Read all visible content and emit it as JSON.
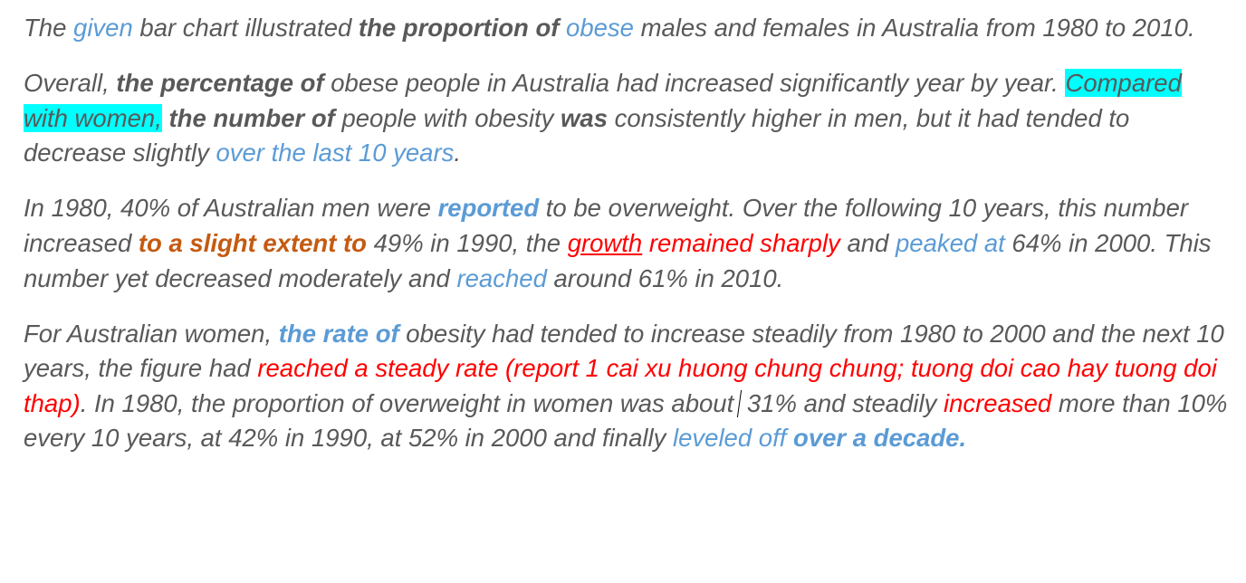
{
  "paragraphs": [
    {
      "segments": [
        {
          "text": "The ",
          "style": []
        },
        {
          "text": "given",
          "style": [
            "blue"
          ]
        },
        {
          "text": " bar chart illustrated ",
          "style": []
        },
        {
          "text": "the proportion of",
          "style": [
            "bold"
          ]
        },
        {
          "text": " ",
          "style": []
        },
        {
          "text": "obese",
          "style": [
            "blue"
          ]
        },
        {
          "text": " males and females in Australia from 1980 to 2010.",
          "style": []
        }
      ]
    },
    {
      "segments": [
        {
          "text": "Overall, ",
          "style": []
        },
        {
          "text": "the percentage of",
          "style": [
            "bold"
          ]
        },
        {
          "text": " obese people in Australia had increased significantly year by year. ",
          "style": []
        },
        {
          "text": "Compared with women,",
          "style": [
            "hl"
          ]
        },
        {
          "text": " ",
          "style": []
        },
        {
          "text": "the number of",
          "style": [
            "bold"
          ]
        },
        {
          "text": " people with obesity ",
          "style": []
        },
        {
          "text": "was",
          "style": [
            "bold"
          ]
        },
        {
          "text": " consistently higher in men, but it had tended to decrease slightly ",
          "style": []
        },
        {
          "text": "over the last 10 years",
          "style": [
            "blue"
          ]
        },
        {
          "text": ".",
          "style": []
        }
      ]
    },
    {
      "segments": [
        {
          "text": "In 1980, 40% of Australian men were ",
          "style": []
        },
        {
          "text": "reported",
          "style": [
            "blue",
            "bold"
          ]
        },
        {
          "text": " to be overweight. Over the following 10 years, this number increased ",
          "style": []
        },
        {
          "text": "to a slight extent to",
          "style": [
            "orange",
            "bold"
          ]
        },
        {
          "text": " 49% in 1990, the ",
          "style": []
        },
        {
          "text": "growth",
          "style": [
            "red",
            "ul"
          ]
        },
        {
          "text": " ",
          "style": []
        },
        {
          "text": "remained sharply",
          "style": [
            "red"
          ]
        },
        {
          "text": " and ",
          "style": []
        },
        {
          "text": "peaked at",
          "style": [
            "blue"
          ]
        },
        {
          "text": " 64% in 2000. This number yet decreased moderately and ",
          "style": []
        },
        {
          "text": "reached",
          "style": [
            "blue"
          ]
        },
        {
          "text": " around 61% in 2010.",
          "style": []
        }
      ]
    },
    {
      "segments": [
        {
          "text": "For Australian women, ",
          "style": []
        },
        {
          "text": "the rate of",
          "style": [
            "blue",
            "bold"
          ]
        },
        {
          "text": " obesity had tended to increase steadily from 1980 to 2000 and the next 10 years, the figure had ",
          "style": []
        },
        {
          "text": "reached a steady rate (report 1 cai xu huong chung chung; tuong doi cao hay tuong doi thap)",
          "style": [
            "red"
          ]
        },
        {
          "text": ". In 1980, the proportion of overweight in women was about",
          "style": []
        },
        {
          "text": "",
          "style": [
            "cursor"
          ]
        },
        {
          "text": " 31% and steadily ",
          "style": []
        },
        {
          "text": "increased",
          "style": [
            "red"
          ]
        },
        {
          "text": " more than 10% every 10 years, at 42% in 1990, at 52% in 2000 and finally ",
          "style": []
        },
        {
          "text": "leveled off",
          "style": [
            "blue"
          ]
        },
        {
          "text": " ",
          "style": []
        },
        {
          "text": "over a decade.",
          "style": [
            "blue",
            "bold"
          ]
        }
      ]
    }
  ]
}
